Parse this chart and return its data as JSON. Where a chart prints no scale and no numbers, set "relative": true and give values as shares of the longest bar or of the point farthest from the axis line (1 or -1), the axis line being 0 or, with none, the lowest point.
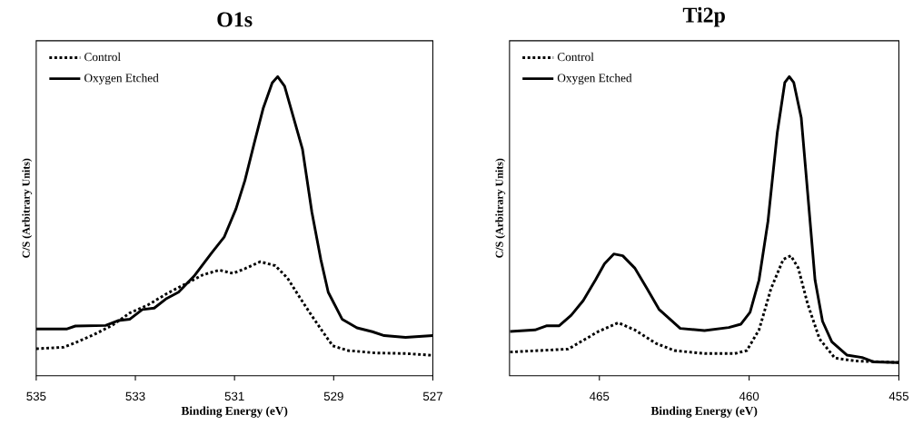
{
  "chart_data": [
    {
      "type": "line",
      "title": "O1s",
      "xlabel": "Binding Energy (eV)",
      "ylabel": "C/S (Arbitrary Units)",
      "relative": true,
      "xlim": [
        535,
        527
      ],
      "xticks": [
        535,
        533,
        531,
        529,
        527
      ],
      "legend": "top left",
      "grid": false,
      "marker": "none",
      "series": [
        {
          "name": "Control",
          "color": "#000000",
          "line_style": "dotted",
          "x": [
            535,
            534.45,
            534.21,
            533.84,
            533.47,
            533.11,
            532.74,
            532.37,
            532.01,
            531.64,
            531.31,
            531.03,
            530.79,
            530.48,
            530.18,
            529.93,
            529.69,
            529.44,
            529.2,
            529.02,
            528.71,
            528.16,
            527.55,
            527
          ],
          "values": [
            0.09,
            0.095,
            0.11,
            0.137,
            0.168,
            0.21,
            0.237,
            0.274,
            0.305,
            0.337,
            0.353,
            0.342,
            0.358,
            0.381,
            0.368,
            0.326,
            0.263,
            0.2,
            0.142,
            0.1,
            0.084,
            0.076,
            0.074,
            0.068
          ]
        },
        {
          "name": "Oxygen Etched",
          "color": "#000000",
          "line_style": "solid",
          "x": [
            535,
            534.39,
            534.21,
            533.6,
            533.35,
            533.11,
            532.86,
            532.62,
            532.37,
            532.13,
            531.82,
            531.46,
            531.21,
            530.97,
            530.79,
            530.6,
            530.42,
            530.24,
            530.13,
            529.99,
            529.81,
            529.63,
            529.44,
            529.26,
            529.11,
            528.83,
            528.53,
            528.22,
            527.98,
            527.55,
            527
          ],
          "values": [
            0.156,
            0.156,
            0.166,
            0.168,
            0.184,
            0.189,
            0.221,
            0.226,
            0.258,
            0.279,
            0.332,
            0.411,
            0.463,
            0.558,
            0.653,
            0.779,
            0.895,
            0.979,
            1,
            0.968,
            0.863,
            0.758,
            0.547,
            0.389,
            0.279,
            0.189,
            0.16,
            0.147,
            0.134,
            0.128,
            0.134
          ]
        }
      ]
    },
    {
      "type": "line",
      "title": "Ti2p",
      "xlabel": "Binding Energy (eV)",
      "ylabel": "C/S (Arbitrary Units)",
      "relative": true,
      "xlim": [
        468,
        455
      ],
      "xticks": [
        465,
        460,
        455
      ],
      "legend": "top left",
      "grid": false,
      "marker": "none",
      "series": [
        {
          "name": "Control",
          "color": "#000000",
          "line_style": "dotted",
          "x": [
            467.98,
            466.04,
            465.54,
            465.03,
            464.37,
            463.82,
            463.11,
            462.5,
            461.49,
            460.48,
            460.08,
            459.67,
            459.27,
            458.86,
            458.61,
            458.36,
            458.05,
            457.65,
            457.14,
            456.44,
            455
          ],
          "values": [
            0.079,
            0.089,
            0.118,
            0.148,
            0.177,
            0.153,
            0.108,
            0.084,
            0.074,
            0.074,
            0.084,
            0.153,
            0.291,
            0.389,
            0.401,
            0.36,
            0.241,
            0.123,
            0.059,
            0.049,
            0.044
          ]
        },
        {
          "name": "Oxygen Etched",
          "color": "#000000",
          "line_style": "solid",
          "x": [
            467.98,
            467.15,
            466.75,
            466.34,
            465.94,
            465.54,
            465.13,
            464.83,
            464.52,
            464.22,
            463.82,
            463.41,
            463.01,
            462.3,
            461.49,
            460.68,
            460.28,
            459.97,
            459.67,
            459.37,
            459.06,
            458.81,
            458.66,
            458.51,
            458.26,
            458.05,
            457.8,
            457.55,
            457.24,
            456.74,
            456.23,
            455.83,
            455
          ],
          "values": [
            0.148,
            0.153,
            0.167,
            0.167,
            0.202,
            0.251,
            0.32,
            0.374,
            0.407,
            0.401,
            0.36,
            0.291,
            0.222,
            0.158,
            0.151,
            0.161,
            0.172,
            0.212,
            0.32,
            0.517,
            0.813,
            0.98,
            1,
            0.98,
            0.862,
            0.616,
            0.32,
            0.182,
            0.113,
            0.069,
            0.061,
            0.046,
            0.044
          ]
        }
      ]
    }
  ]
}
